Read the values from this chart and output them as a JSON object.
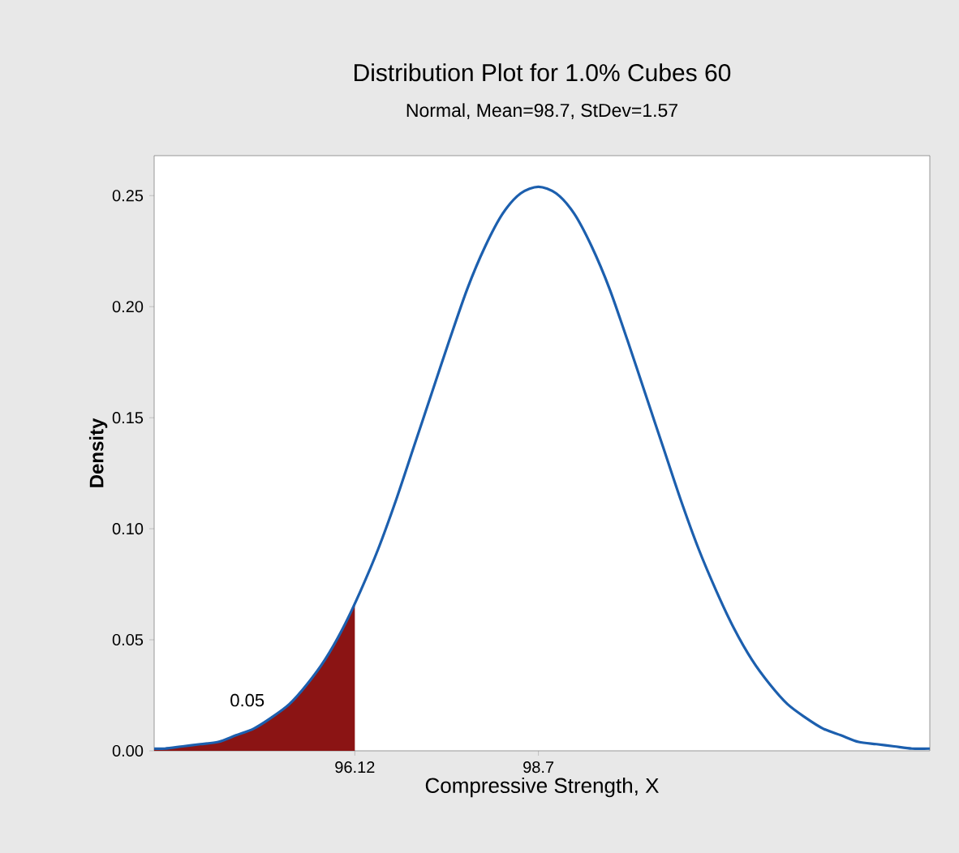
{
  "chart_data": {
    "type": "line",
    "title": "Distribution Plot for 1.0% Cubes 60",
    "subtitle": "Normal, Mean=98.7, StDev=1.57",
    "xlabel": "Compressive Strength, X",
    "ylabel": "Density",
    "xlim": [
      93.3,
      104.2
    ],
    "ylim": [
      0,
      0.268
    ],
    "xticks": [
      96.12,
      98.7
    ],
    "yticks": [
      {
        "value": 0,
        "label": "0.00"
      },
      {
        "value": 0.05,
        "label": "0.05"
      },
      {
        "value": 0.1,
        "label": "0.10"
      },
      {
        "value": 0.15,
        "label": "0.15"
      },
      {
        "value": 0.2,
        "label": "0.20"
      },
      {
        "value": 0.25,
        "label": "0.25"
      }
    ],
    "series": [
      {
        "type": "area",
        "color": "#8b1414",
        "x": [
          93.3,
          93.45,
          93.7,
          93.95,
          94.2,
          94.45,
          94.7,
          94.95,
          95.2,
          95.45,
          95.7,
          95.95,
          96.12
        ],
        "values": [
          0.001,
          0.001,
          0.002,
          0.003,
          0.004,
          0.007,
          0.01,
          0.015,
          0.021,
          0.03,
          0.041,
          0.055,
          0.066
        ]
      },
      {
        "color": "#1c5fae",
        "x": [
          93.3,
          93.45,
          93.7,
          93.95,
          94.2,
          94.45,
          94.7,
          94.95,
          95.2,
          95.45,
          95.7,
          95.95,
          96.2,
          96.45,
          96.7,
          96.95,
          97.2,
          97.45,
          97.7,
          97.95,
          98.2,
          98.45,
          98.7,
          98.95,
          99.2,
          99.45,
          99.7,
          99.95,
          100.2,
          100.45,
          100.7,
          100.95,
          101.2,
          101.45,
          101.7,
          101.95,
          102.2,
          102.45,
          102.7,
          102.95,
          103.2,
          103.45,
          103.7,
          103.95,
          104.2
        ],
        "values": [
          0.001,
          0.001,
          0.002,
          0.003,
          0.004,
          0.007,
          0.01,
          0.015,
          0.021,
          0.03,
          0.041,
          0.055,
          0.072,
          0.091,
          0.113,
          0.137,
          0.161,
          0.185,
          0.208,
          0.227,
          0.242,
          0.251,
          0.254,
          0.251,
          0.242,
          0.227,
          0.208,
          0.185,
          0.161,
          0.137,
          0.113,
          0.091,
          0.072,
          0.055,
          0.041,
          0.03,
          0.021,
          0.015,
          0.01,
          0.007,
          0.004,
          0.003,
          0.002,
          0.001,
          0.001
        ]
      }
    ],
    "annotations": [
      "0.05"
    ]
  }
}
